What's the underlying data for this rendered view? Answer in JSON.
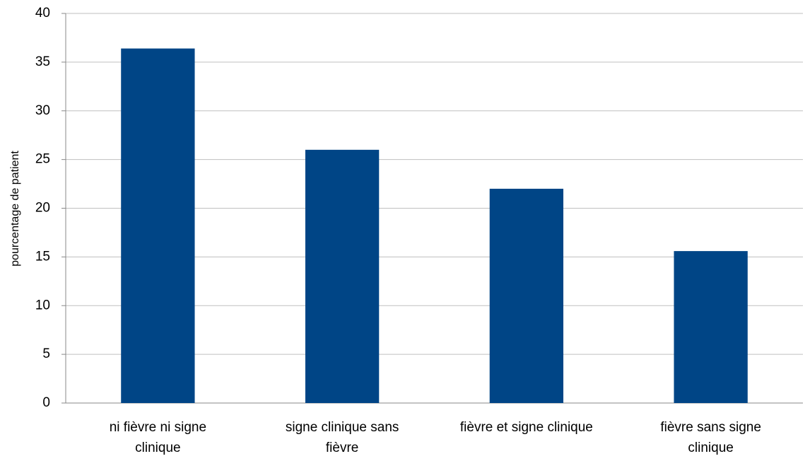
{
  "chart_data": {
    "type": "bar",
    "y_label": "pourcentage de patient",
    "categories": [
      "ni fièvre ni signe\nclinique",
      "signe clinique sans\nfièvre",
      "fièvre et signe clinique",
      "fièvre sans signe\nclinique"
    ],
    "values": [
      36.4,
      26,
      22,
      15.6
    ],
    "color": "#004586",
    "ylim": [
      0,
      40
    ],
    "yticks": [
      0,
      5,
      10,
      15,
      20,
      25,
      30,
      35,
      40
    ],
    "grid": true
  }
}
